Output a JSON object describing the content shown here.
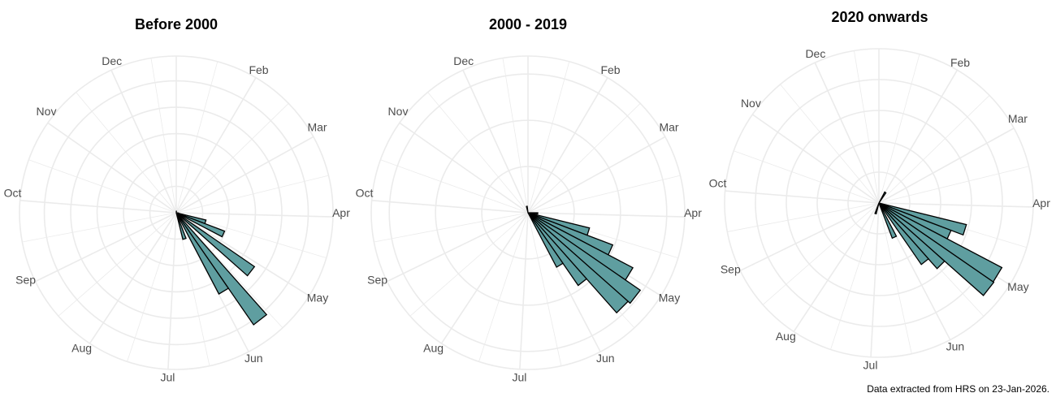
{
  "caption": "Data extracted from HRS on 23-Jan-2026.",
  "style": {
    "bar_fill": "#5f9ea0",
    "bar_stroke": "#000000",
    "grid_color": "#ebebeb",
    "label_color": "#4d4d4d"
  },
  "chart_data": [
    {
      "type": "bar",
      "subtype": "polar (rose) histogram",
      "title": "Before 2000",
      "xlabel": "",
      "ylabel": "",
      "axis_labels": [
        "Dec",
        "Feb",
        "Mar",
        "Apr",
        "May",
        "Jun",
        "Jul",
        "Aug",
        "Sep",
        "Oct",
        "Nov"
      ],
      "angle_units": "week of year (52 bins, Jan at top, clockwise)",
      "ring_step": 5,
      "rings": [
        5,
        10,
        15,
        20,
        25
      ],
      "rmax": 29.7,
      "grid": true,
      "legend": null,
      "bars": [
        {
          "week": 0,
          "value": 0.3
        },
        {
          "week": 14,
          "value": 0.4
        },
        {
          "week": 15,
          "value": 5.8
        },
        {
          "week": 16,
          "value": 9.8
        },
        {
          "week": 17,
          "value": 0.4
        },
        {
          "week": 18,
          "value": 18.0
        },
        {
          "week": 19,
          "value": 0.4
        },
        {
          "week": 20,
          "value": 25.8
        },
        {
          "week": 21,
          "value": 17.4
        },
        {
          "week": 22,
          "value": 0.4
        },
        {
          "week": 23,
          "value": 5.2
        }
      ]
    },
    {
      "type": "bar",
      "subtype": "polar (rose) histogram",
      "title": "2000 - 2019",
      "xlabel": "",
      "ylabel": "",
      "axis_labels": [
        "Dec",
        "Feb",
        "Mar",
        "Apr",
        "May",
        "Jun",
        "Jul",
        "Aug",
        "Sep",
        "Oct",
        "Nov"
      ],
      "angle_units": "week of year (52 bins, Jan at top, clockwise)",
      "ring_step": 10,
      "rings": [
        10,
        20,
        30
      ],
      "rmax": 33.9,
      "grid": true,
      "legend": null,
      "bars": [
        {
          "week": 50,
          "value": 1.4
        },
        {
          "week": 13,
          "value": 2.1
        },
        {
          "week": 15,
          "value": 13.7
        },
        {
          "week": 16,
          "value": 19.6
        },
        {
          "week": 17,
          "value": 25.6
        },
        {
          "week": 18,
          "value": 29.5
        },
        {
          "week": 19,
          "value": 28.9
        },
        {
          "week": 20,
          "value": 19.1
        },
        {
          "week": 21,
          "value": 13.3
        }
      ]
    },
    {
      "type": "bar",
      "subtype": "polar (rose) histogram",
      "title": "2020 onwards",
      "xlabel": "",
      "ylabel": "",
      "axis_labels": [
        "Dec",
        "Feb",
        "Mar",
        "Apr",
        "May",
        "Jun",
        "Jul",
        "Aug",
        "Sep",
        "Oct",
        "Nov"
      ],
      "angle_units": "week of year (52 bins, Jan at top, clockwise)",
      "ring_step": 5,
      "rings": [
        5,
        10,
        15,
        20
      ],
      "rmax": 25.0,
      "grid": true,
      "legend": null,
      "bars": [
        {
          "week": 4,
          "value": 2.0
        },
        {
          "week": 28,
          "value": 1.8
        },
        {
          "week": 15,
          "value": 14.6
        },
        {
          "week": 16,
          "value": 12.5
        },
        {
          "week": 17,
          "value": 22.5
        },
        {
          "week": 18,
          "value": 22.6
        },
        {
          "week": 19,
          "value": 14.2
        },
        {
          "week": 20,
          "value": 12.1
        },
        {
          "week": 22,
          "value": 6.1
        }
      ]
    }
  ]
}
